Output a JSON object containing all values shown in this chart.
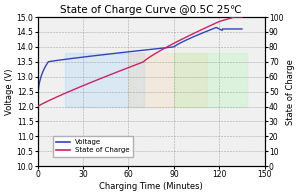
{
  "title": "State of Charge Curve @0.5C 25℃",
  "xlabel": "Charging Time (Minutes)",
  "ylabel_left": "Voltage (V)",
  "ylabel_right": "State of Charge",
  "xlim": [
    0,
    150
  ],
  "ylim_left": [
    10.0,
    15.0
  ],
  "ylim_right": [
    0,
    100
  ],
  "xticks": [
    0,
    30,
    60,
    90,
    120,
    150
  ],
  "yticks_left": [
    10.0,
    10.5,
    11.0,
    11.5,
    12.0,
    12.5,
    13.0,
    13.5,
    14.0,
    14.5,
    15.0
  ],
  "yticks_right": [
    0,
    10,
    20,
    30,
    40,
    50,
    60,
    70,
    80,
    90,
    100
  ],
  "voltage_color": "#3344bb",
  "soc_color": "#cc2266",
  "background_color": "#f0f0f0",
  "legend_labels": [
    "Voltage",
    "State of Charge"
  ],
  "title_fontsize": 7.5,
  "axis_label_fontsize": 6,
  "tick_fontsize": 5.5,
  "legend_fontsize": 5,
  "figsize": [
    3.0,
    1.96
  ],
  "dpi": 100
}
